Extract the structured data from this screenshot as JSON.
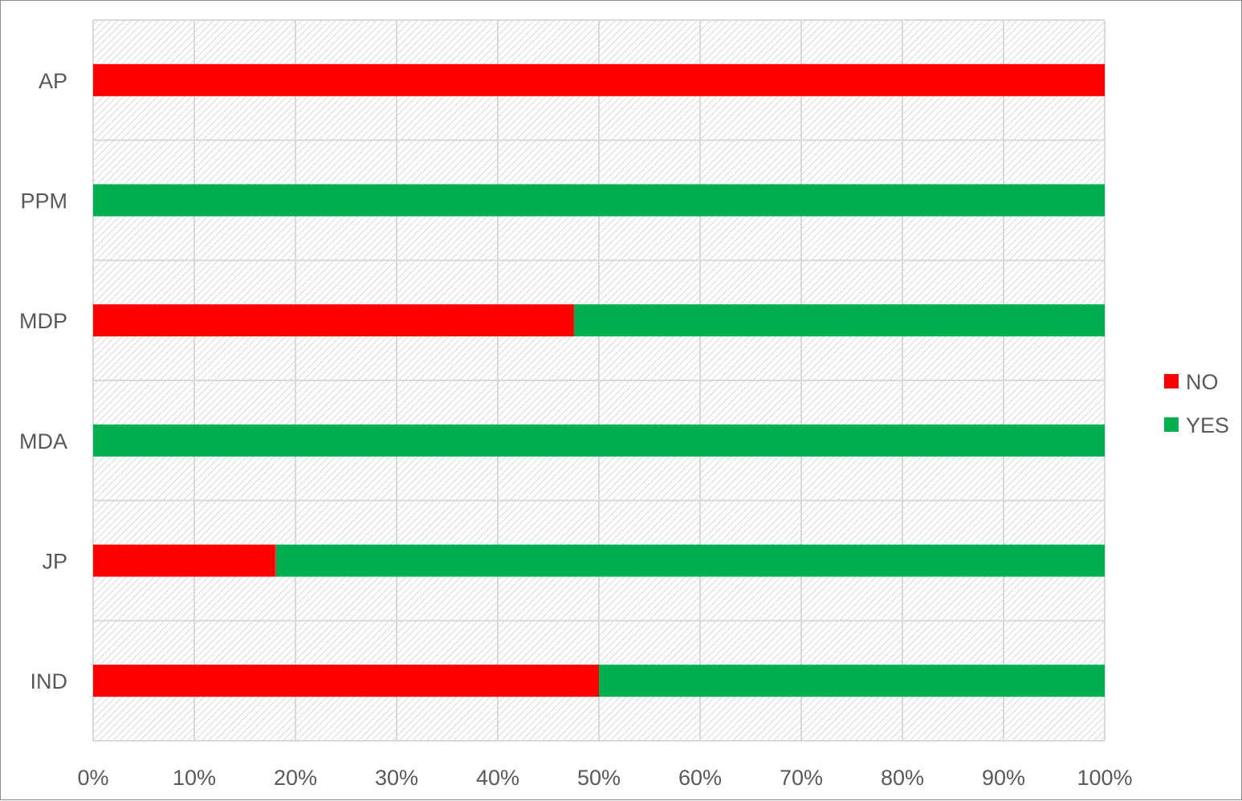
{
  "chart_data": {
    "type": "bar",
    "orientation": "horizontal",
    "stacked": true,
    "percent_stacked": true,
    "categories": [
      "IND",
      "JP",
      "MDA",
      "MDP",
      "PPM",
      "AP"
    ],
    "series": [
      {
        "name": "NO",
        "color": "#ff0000",
        "values": [
          50,
          18,
          0,
          47.5,
          0,
          100
        ]
      },
      {
        "name": "YES",
        "color": "#00b050",
        "values": [
          50,
          82,
          100,
          52.5,
          100,
          0
        ]
      }
    ],
    "xticks": [
      "0%",
      "10%",
      "20%",
      "30%",
      "40%",
      "50%",
      "60%",
      "70%",
      "80%",
      "90%",
      "100%"
    ],
    "xlim": [
      0,
      100
    ],
    "grid": true,
    "legend": {
      "position": "right",
      "entries": [
        "NO",
        "YES"
      ]
    },
    "title": "",
    "xlabel": "",
    "ylabel": ""
  }
}
